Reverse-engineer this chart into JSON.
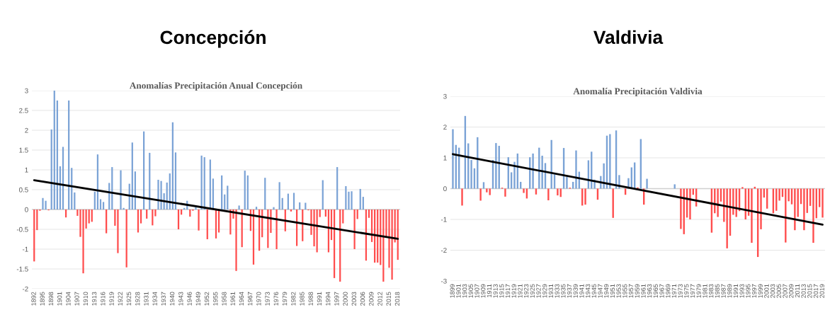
{
  "chart_data": [
    {
      "type": "bar",
      "title": "Concepción",
      "subtitle": "Anomalías Precipitación Anual Concepción",
      "grid": "y",
      "ylim": [
        -2,
        3
      ],
      "yticks": [
        -2,
        -1.5,
        -1,
        -0.5,
        0,
        0.5,
        1,
        1.5,
        2,
        2.5,
        3
      ],
      "categories": [
        "1892",
        null,
        null,
        "1895",
        null,
        null,
        "1898",
        null,
        null,
        "1901",
        null,
        null,
        "1904",
        null,
        null,
        "1907",
        null,
        null,
        "1910",
        null,
        null,
        "1913",
        null,
        null,
        "1916",
        null,
        null,
        "1919",
        null,
        null,
        "1922",
        null,
        null,
        "1925",
        null,
        null,
        "1928",
        null,
        null,
        "1931",
        null,
        null,
        "1934",
        null,
        null,
        "1937",
        null,
        null,
        "1940",
        null,
        null,
        "1943",
        null,
        null,
        "1946",
        null,
        null,
        "1949",
        null,
        null,
        "1952",
        null,
        null,
        "1955",
        null,
        null,
        "1958",
        null,
        null,
        "1961",
        null,
        null,
        "1964",
        null,
        null,
        "1967",
        null,
        null,
        "1970",
        null,
        null,
        "1973",
        null,
        null,
        "1976",
        null,
        null,
        "1979",
        null,
        null,
        "1982",
        null,
        null,
        "1985",
        null,
        null,
        "1988",
        null,
        null,
        "1991",
        null,
        null,
        "1994",
        null,
        null,
        "1997",
        null,
        null,
        "2000",
        null,
        null,
        "2003",
        null,
        null,
        "2006",
        null,
        null,
        "2009",
        null,
        null,
        "2012",
        null,
        null,
        "2015",
        null,
        null,
        "2018"
      ],
      "series": [
        {
          "values": [
            -1.31,
            -0.52,
            -0.03,
            0.29,
            0.22,
            -0.02,
            2.02,
            3.0,
            2.75,
            1.09,
            1.58,
            -0.2,
            2.75,
            1.05,
            0.43,
            -0.16,
            -0.69,
            -1.61,
            -0.48,
            -0.35,
            -0.31,
            0.45,
            1.39,
            0.26,
            0.19,
            -0.6,
            0.67,
            1.07,
            -0.41,
            -1.1,
            0.99,
            0.04,
            -1.46,
            0.65,
            1.69,
            0.96,
            -0.58,
            -0.35,
            1.97,
            -0.23,
            1.43,
            -0.4,
            -0.17,
            0.75,
            0.72,
            0.41,
            0.68,
            0.91,
            2.2,
            1.44,
            -0.5,
            -0.13,
            0.04,
            0.22,
            -0.18,
            -0.03,
            0.06,
            -0.53,
            1.36,
            1.32,
            -0.75,
            1.26,
            0.78,
            -0.73,
            -0.58,
            0.86,
            0.38,
            0.6,
            -0.63,
            -0.23,
            -1.55,
            0.1,
            -0.95,
            0.98,
            0.86,
            -0.54,
            -1.39,
            0.07,
            -1.04,
            -0.7,
            0.8,
            -0.97,
            -0.59,
            0.06,
            -1.0,
            0.69,
            0.29,
            -0.55,
            0.4,
            -0.05,
            0.42,
            -0.92,
            0.18,
            -0.8,
            0.17,
            -0.02,
            -0.64,
            -0.93,
            -1.08,
            -0.19,
            0.74,
            -0.18,
            -1.08,
            -0.77,
            -1.73,
            1.07,
            -1.82,
            -0.35,
            0.59,
            0.45,
            0.46,
            -1.0,
            -0.24,
            0.52,
            0.32,
            -1.29,
            -0.21,
            -0.82,
            -1.34,
            -1.34,
            -1.4,
            -1.82,
            -0.68,
            -1.47,
            -1.77,
            -0.83,
            -1.27
          ],
          "colors": [
            "#ff4d4d",
            "#ff4d4d",
            "#ff4d4d",
            "#7ba3d6",
            "#7ba3d6",
            "#ff4d4d",
            "#7ba3d6",
            "#7ba3d6",
            "#7ba3d6",
            "#7ba3d6",
            "#7ba3d6",
            "#ff4d4d",
            "#7ba3d6",
            "#7ba3d6",
            "#7ba3d6",
            "#ff4d4d",
            "#ff4d4d",
            "#ff4d4d",
            "#ff4d4d",
            "#ff4d4d",
            "#ff4d4d",
            "#7ba3d6",
            "#7ba3d6",
            "#7ba3d6",
            "#7ba3d6",
            "#ff4d4d",
            "#7ba3d6",
            "#7ba3d6",
            "#ff4d4d",
            "#ff4d4d",
            "#7ba3d6",
            "#7ba3d6",
            "#ff4d4d",
            "#7ba3d6",
            "#7ba3d6",
            "#7ba3d6",
            "#ff4d4d",
            "#ff4d4d",
            "#7ba3d6",
            "#ff4d4d",
            "#7ba3d6",
            "#ff4d4d",
            "#ff4d4d",
            "#7ba3d6",
            "#7ba3d6",
            "#7ba3d6",
            "#7ba3d6",
            "#7ba3d6",
            "#7ba3d6",
            "#7ba3d6",
            "#ff4d4d",
            "#ff4d4d",
            "#7ba3d6",
            "#7ba3d6",
            "#ff4d4d",
            "#ff4d4d",
            "#7ba3d6",
            "#ff4d4d",
            "#7ba3d6",
            "#7ba3d6",
            "#ff4d4d",
            "#7ba3d6",
            "#7ba3d6",
            "#ff4d4d",
            "#ff4d4d",
            "#7ba3d6",
            "#7ba3d6",
            "#7ba3d6",
            "#ff4d4d",
            "#ff4d4d",
            "#ff4d4d",
            "#7ba3d6",
            "#ff4d4d",
            "#7ba3d6",
            "#7ba3d6",
            "#ff4d4d",
            "#ff4d4d",
            "#7ba3d6",
            "#ff4d4d",
            "#ff4d4d",
            "#7ba3d6",
            "#ff4d4d",
            "#ff4d4d",
            "#7ba3d6",
            "#ff4d4d",
            "#7ba3d6",
            "#7ba3d6",
            "#ff4d4d",
            "#7ba3d6",
            "#ff4d4d",
            "#7ba3d6",
            "#ff4d4d",
            "#7ba3d6",
            "#ff4d4d",
            "#7ba3d6",
            "#ff4d4d",
            "#ff4d4d",
            "#ff4d4d",
            "#ff4d4d",
            "#ff4d4d",
            "#7ba3d6",
            "#ff4d4d",
            "#ff4d4d",
            "#ff4d4d",
            "#ff4d4d",
            "#7ba3d6",
            "#ff4d4d",
            "#ff4d4d",
            "#7ba3d6",
            "#7ba3d6",
            "#7ba3d6",
            "#ff4d4d",
            "#ff4d4d",
            "#7ba3d6",
            "#7ba3d6",
            "#ff4d4d",
            "#ff4d4d",
            "#ff4d4d",
            "#ff4d4d",
            "#ff4d4d",
            "#ff4d4d",
            "#ff4d4d",
            "#ff4d4d",
            "#ff4d4d",
            "#ff4d4d",
            "#ff4d4d",
            "#ff4d4d"
          ]
        },
        {
          "type": "line",
          "values": [
            0.74,
            null,
            null,
            null,
            null,
            null,
            null,
            null,
            null,
            null,
            null,
            null,
            null,
            null,
            null,
            null,
            null,
            null,
            null,
            null,
            null,
            null,
            null,
            null,
            null,
            null,
            null,
            null,
            null,
            null,
            null,
            null,
            null,
            null,
            null,
            null,
            null,
            null,
            null,
            null,
            null,
            null,
            null,
            null,
            null,
            null,
            null,
            null,
            null,
            null,
            null,
            null,
            null,
            null,
            null,
            null,
            null,
            null,
            null,
            null,
            null,
            null,
            null,
            null,
            null,
            null,
            null,
            null,
            null,
            null,
            null,
            null,
            null,
            null,
            null,
            null,
            null,
            null,
            null,
            null,
            null,
            null,
            null,
            null,
            null,
            null,
            null,
            null,
            null,
            null,
            null,
            null,
            null,
            null,
            null,
            null,
            null,
            null,
            null,
            null,
            null,
            null,
            null,
            null,
            null,
            null,
            null,
            null,
            null,
            null,
            null,
            null,
            null,
            null,
            null,
            null,
            null,
            null,
            null,
            null,
            null,
            null,
            null,
            null,
            null,
            null,
            -0.74
          ],
          "color": "#000000"
        }
      ]
    },
    {
      "type": "bar",
      "title": "Valdivia",
      "subtitle": "Anomalía Precipitación Valdivia",
      "grid": "y",
      "ylim": [
        -3,
        3
      ],
      "yticks": [
        -3,
        -2,
        -1,
        0,
        1,
        2,
        3
      ],
      "categories": [
        "1899",
        null,
        "1901",
        null,
        "1903",
        null,
        "1905",
        null,
        "1907",
        null,
        "1909",
        null,
        "1911",
        null,
        "1913",
        null,
        "1915",
        null,
        "1917",
        null,
        "1919",
        null,
        "1921",
        null,
        "1923",
        null,
        "1925",
        null,
        "1927",
        null,
        "1929",
        null,
        "1931",
        null,
        "1933",
        null,
        "1935",
        null,
        "1937",
        null,
        "1939",
        null,
        "1941",
        null,
        "1943",
        null,
        "1945",
        null,
        "1947",
        null,
        "1949",
        null,
        "1951",
        null,
        "1953",
        null,
        "1955",
        null,
        "1957",
        null,
        "1959",
        null,
        "1961",
        null,
        "1963",
        null,
        "1965",
        null,
        "1967",
        null,
        "1969",
        null,
        "1971",
        null,
        "1973",
        null,
        "1975",
        null,
        "1977",
        null,
        "1979",
        null,
        "1981",
        null,
        "1983",
        null,
        "1985",
        null,
        "1987",
        null,
        "1989",
        null,
        "1991",
        null,
        "1993",
        null,
        "1995",
        null,
        "1997",
        null,
        "1999",
        null,
        "2001",
        null,
        "2003",
        null,
        "2005",
        null,
        "2007",
        null,
        "2009",
        null,
        "2011",
        null,
        "2013",
        null,
        "2015",
        null,
        "2017",
        null,
        "2019"
      ],
      "series": [
        {
          "values": [
            1.93,
            1.42,
            1.33,
            -0.55,
            2.36,
            1.47,
            0.93,
            0.66,
            1.67,
            -0.39,
            0.21,
            -0.12,
            -0.21,
            0.93,
            1.48,
            1.39,
            0.03,
            -0.26,
            1.02,
            0.53,
            0.87,
            1.14,
            0.22,
            -0.14,
            -0.32,
            1.02,
            1.14,
            -0.19,
            1.33,
            1.07,
            0.83,
            -0.38,
            1.58,
            0.46,
            -0.22,
            -0.27,
            1.32,
            0.38,
            0.03,
            0.22,
            1.24,
            0.55,
            -0.55,
            -0.52,
            0.92,
            1.2,
            0.29,
            -0.36,
            0.41,
            0.82,
            1.72,
            1.77,
            -0.95,
            1.89,
            0.44,
            0,
            -0.2,
            0.34,
            0.69,
            0.85,
            0.04,
            1.61,
            -0.52,
            0.32,
            0,
            0,
            0,
            0,
            0,
            0,
            0,
            0,
            0.14,
            0,
            -1.31,
            -1.48,
            -0.94,
            -1.0,
            -0.2,
            -0.58,
            0,
            0,
            0,
            0,
            -1.43,
            -0.8,
            -0.92,
            -0.42,
            -1.08,
            -1.94,
            -1.53,
            -0.85,
            -0.92,
            -0.73,
            0.05,
            -1.0,
            -0.88,
            -1.76,
            0.06,
            -2.22,
            -1.32,
            -0.29,
            -0.65,
            0,
            -0.8,
            -0.72,
            -0.39,
            -0.27,
            -1.75,
            -0.41,
            -0.51,
            -1.35,
            -0.92,
            -0.5,
            -1.35,
            -0.79,
            -0.56,
            -1.76,
            -0.96,
            -0.6,
            -0.94
          ],
          "colors": [
            "#7ba3d6",
            "#7ba3d6",
            "#7ba3d6",
            "#ff4d4d",
            "#7ba3d6",
            "#7ba3d6",
            "#7ba3d6",
            "#7ba3d6",
            "#7ba3d6",
            "#ff4d4d",
            "#7ba3d6",
            "#ff4d4d",
            "#ff4d4d",
            "#7ba3d6",
            "#7ba3d6",
            "#7ba3d6",
            "#ff4d4d",
            "#ff4d4d",
            "#7ba3d6",
            "#7ba3d6",
            "#7ba3d6",
            "#7ba3d6",
            "#7ba3d6",
            "#ff4d4d",
            "#ff4d4d",
            "#7ba3d6",
            "#7ba3d6",
            "#ff4d4d",
            "#7ba3d6",
            "#7ba3d6",
            "#7ba3d6",
            "#ff4d4d",
            "#7ba3d6",
            "#7ba3d6",
            "#ff4d4d",
            "#ff4d4d",
            "#7ba3d6",
            "#7ba3d6",
            "#ff4d4d",
            "#7ba3d6",
            "#7ba3d6",
            "#7ba3d6",
            "#ff4d4d",
            "#ff4d4d",
            "#7ba3d6",
            "#7ba3d6",
            "#7ba3d6",
            "#ff4d4d",
            "#7ba3d6",
            "#7ba3d6",
            "#7ba3d6",
            "#7ba3d6",
            "#ff4d4d",
            "#7ba3d6",
            "#7ba3d6",
            "#7ba3d6",
            "#ff4d4d",
            "#7ba3d6",
            "#7ba3d6",
            "#7ba3d6",
            "#ff4d4d",
            "#7ba3d6",
            "#ff4d4d",
            "#7ba3d6",
            "#7ba3d6",
            "#7ba3d6",
            "#7ba3d6",
            "#7ba3d6",
            "#7ba3d6",
            "#7ba3d6",
            "#7ba3d6",
            "#7ba3d6",
            "#7ba3d6",
            "#7ba3d6",
            "#ff4d4d",
            "#ff4d4d",
            "#ff4d4d",
            "#ff4d4d",
            "#ff4d4d",
            "#ff4d4d",
            "#ff4d4d",
            "#ff4d4d",
            "#ff4d4d",
            "#ff4d4d",
            "#ff4d4d",
            "#ff4d4d",
            "#ff4d4d",
            "#ff4d4d",
            "#ff4d4d",
            "#ff4d4d",
            "#ff4d4d",
            "#ff4d4d",
            "#ff4d4d",
            "#ff4d4d",
            "#ff4d4d",
            "#ff4d4d",
            "#ff4d4d",
            "#ff4d4d",
            "#ff4d4d",
            "#ff4d4d",
            "#ff4d4d",
            "#ff4d4d",
            "#ff4d4d",
            "#ff4d4d",
            "#ff4d4d",
            "#ff4d4d",
            "#ff4d4d",
            "#ff4d4d",
            "#ff4d4d",
            "#ff4d4d",
            "#ff4d4d",
            "#ff4d4d",
            "#ff4d4d",
            "#ff4d4d",
            "#ff4d4d",
            "#ff4d4d",
            "#ff4d4d",
            "#ff4d4d",
            "#ff4d4d",
            "#ff4d4d",
            "#ff4d4d"
          ]
        },
        {
          "type": "line",
          "values": [
            1.12,
            null,
            null,
            null,
            null,
            null,
            null,
            null,
            null,
            null,
            null,
            null,
            null,
            null,
            null,
            null,
            null,
            null,
            null,
            null,
            null,
            null,
            null,
            null,
            null,
            null,
            null,
            null,
            null,
            null,
            null,
            null,
            null,
            null,
            null,
            null,
            null,
            null,
            null,
            null,
            null,
            null,
            null,
            null,
            null,
            null,
            null,
            null,
            null,
            null,
            null,
            null,
            null,
            null,
            null,
            null,
            null,
            null,
            null,
            null,
            null,
            null,
            null,
            null,
            null,
            null,
            null,
            null,
            null,
            null,
            null,
            null,
            null,
            null,
            null,
            null,
            null,
            null,
            null,
            null,
            null,
            null,
            null,
            null,
            null,
            null,
            null,
            null,
            null,
            null,
            null,
            null,
            null,
            null,
            null,
            null,
            null,
            null,
            null,
            null,
            null,
            null,
            null,
            null,
            null,
            null,
            null,
            null,
            null,
            null,
            null,
            null,
            null,
            null,
            null,
            null,
            null,
            null,
            null,
            null,
            -1.17
          ],
          "color": "#000000"
        }
      ]
    }
  ]
}
